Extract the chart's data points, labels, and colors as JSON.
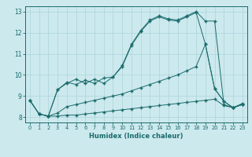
{
  "xlabel": "Humidex (Indice chaleur)",
  "ylabel": "",
  "bg_color": "#cce9ee",
  "line_color": "#1a6b6b",
  "grid_color": "#aad4da",
  "xlim": [
    -0.5,
    23.5
  ],
  "ylim": [
    7.75,
    13.25
  ],
  "xticks": [
    0,
    1,
    2,
    3,
    4,
    5,
    6,
    7,
    8,
    9,
    10,
    11,
    12,
    13,
    14,
    15,
    16,
    17,
    18,
    19,
    20,
    21,
    22,
    23
  ],
  "yticks": [
    8,
    9,
    10,
    11,
    12,
    13
  ],
  "line1_x": [
    0,
    1,
    2,
    3,
    4,
    5,
    6,
    7,
    8,
    9,
    10,
    11,
    12,
    13,
    14,
    15,
    16,
    17,
    18,
    19,
    20,
    21,
    22,
    23
  ],
  "line1_y": [
    8.8,
    8.15,
    8.05,
    8.05,
    8.1,
    8.1,
    8.15,
    8.2,
    8.25,
    8.3,
    8.35,
    8.4,
    8.45,
    8.5,
    8.55,
    8.6,
    8.65,
    8.7,
    8.75,
    8.8,
    8.85,
    8.55,
    8.45,
    8.6
  ],
  "line2_x": [
    0,
    1,
    2,
    3,
    4,
    5,
    6,
    7,
    8,
    9,
    10,
    11,
    12,
    13,
    14,
    15,
    16,
    17,
    18,
    19,
    20,
    21,
    22,
    23
  ],
  "line2_y": [
    8.8,
    8.15,
    8.05,
    9.3,
    9.65,
    9.55,
    9.75,
    9.6,
    9.85,
    9.9,
    10.45,
    11.45,
    12.1,
    12.6,
    12.8,
    12.65,
    12.6,
    12.8,
    13.0,
    12.55,
    12.55,
    8.6,
    8.45,
    8.65
  ],
  "line3_x": [
    1,
    2,
    3,
    4,
    5,
    6,
    7,
    8,
    9,
    10,
    11,
    12,
    13,
    14,
    15,
    16,
    17,
    18,
    19,
    20,
    21,
    22,
    23
  ],
  "line3_y": [
    8.15,
    8.05,
    9.3,
    9.6,
    9.8,
    9.6,
    9.8,
    9.6,
    9.9,
    10.4,
    11.4,
    12.05,
    12.55,
    12.75,
    12.6,
    12.55,
    12.75,
    12.95,
    11.45,
    9.35,
    8.75,
    8.45,
    8.6
  ],
  "line4_x": [
    0,
    1,
    2,
    3,
    4,
    5,
    6,
    7,
    8,
    9,
    10,
    11,
    12,
    13,
    14,
    15,
    16,
    17,
    18,
    19,
    20,
    21,
    22,
    23
  ],
  "line4_y": [
    8.8,
    8.15,
    8.05,
    8.2,
    8.5,
    8.6,
    8.7,
    8.8,
    8.9,
    9.0,
    9.1,
    9.25,
    9.4,
    9.55,
    9.7,
    9.85,
    10.0,
    10.2,
    10.4,
    11.45,
    9.35,
    8.75,
    8.45,
    8.6
  ]
}
